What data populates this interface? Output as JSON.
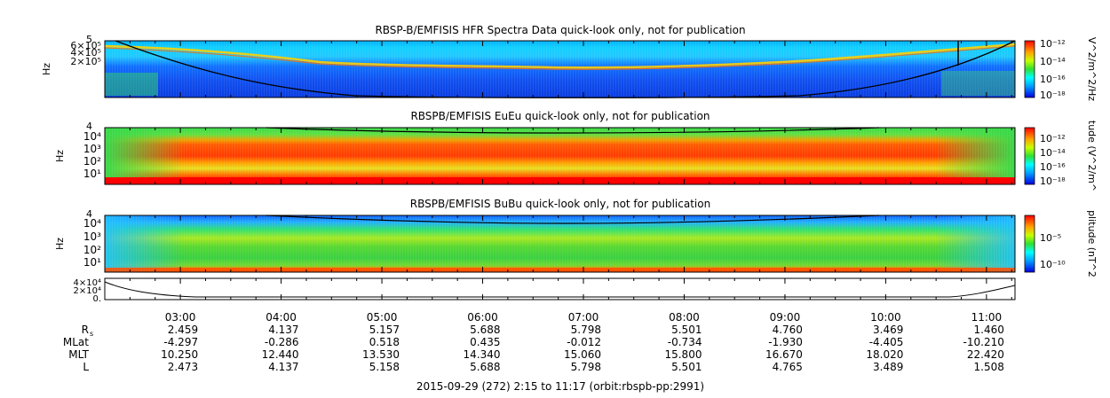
{
  "chart_data": {
    "type": "heatmap",
    "panels": [
      {
        "id": "hfr",
        "title": "RBSP-B/EMFISIS  HFR Spectra Data quick-look only, not for publication",
        "ylabel": "Hz",
        "yticks": [
          "6×10⁵",
          "4×10⁵",
          "2×10⁵"
        ],
        "ytop_label": "5",
        "cbar_label": "V^2/m^2/Hz",
        "cbar_ticks": [
          "10⁻¹²",
          "10⁻¹⁴",
          "10⁻¹⁶",
          "10⁻¹⁸"
        ]
      },
      {
        "id": "eueu",
        "title": "RBSPB/EMFISIS  EuEu quick-look only, not for publication",
        "ylabel": "Hz",
        "yticks": [
          "10⁴",
          "10³",
          "10²",
          "10¹"
        ],
        "ytop_label": "4",
        "cbar_label": "tude (V^2/m^",
        "cbar_ticks": [
          "10⁻¹²",
          "10⁻¹⁴",
          "10⁻¹⁶",
          "10⁻¹⁸"
        ]
      },
      {
        "id": "bubu",
        "title": "RBSPB/EMFISIS  BuBu quick-look only, not for publication",
        "ylabel": "Hz",
        "yticks": [
          "10⁴",
          "10³",
          "10²",
          "10¹"
        ],
        "ytop_label": "4",
        "cbar_label": "plitude (nT^2",
        "cbar_ticks": [
          "10⁻⁵",
          "10⁻¹⁰"
        ]
      },
      {
        "id": "line",
        "title": "",
        "yticks": [
          "4×10⁴",
          "2×10⁴",
          "0."
        ]
      }
    ],
    "time_ticks": [
      "03:00",
      "04:00",
      "05:00",
      "06:00",
      "07:00",
      "08:00",
      "09:00",
      "10:00",
      "11:00"
    ],
    "time_range_hours": [
      2.25,
      11.283
    ],
    "ephemeris": [
      {
        "label": "R",
        "sub": "s",
        "values": [
          "2.459",
          "4.137",
          "5.157",
          "5.688",
          "5.798",
          "5.501",
          "4.760",
          "3.469",
          "1.460"
        ]
      },
      {
        "label": "MLat",
        "sub": "",
        "values": [
          "-4.297",
          "-0.286",
          "0.518",
          "0.435",
          "-0.012",
          "-0.734",
          "-1.930",
          "-4.405",
          "-10.210"
        ]
      },
      {
        "label": "MLT",
        "sub": "",
        "values": [
          "10.250",
          "12.440",
          "13.530",
          "14.340",
          "15.060",
          "15.800",
          "16.670",
          "18.020",
          "22.420"
        ]
      },
      {
        "label": "L",
        "sub": "",
        "values": [
          "2.473",
          "4.137",
          "5.158",
          "5.688",
          "5.798",
          "5.501",
          "4.765",
          "3.489",
          "1.508"
        ]
      }
    ],
    "footer": "2015-09-29 (272) 2:15 to 11:17 (orbit:rbspb-pp:2991)"
  }
}
